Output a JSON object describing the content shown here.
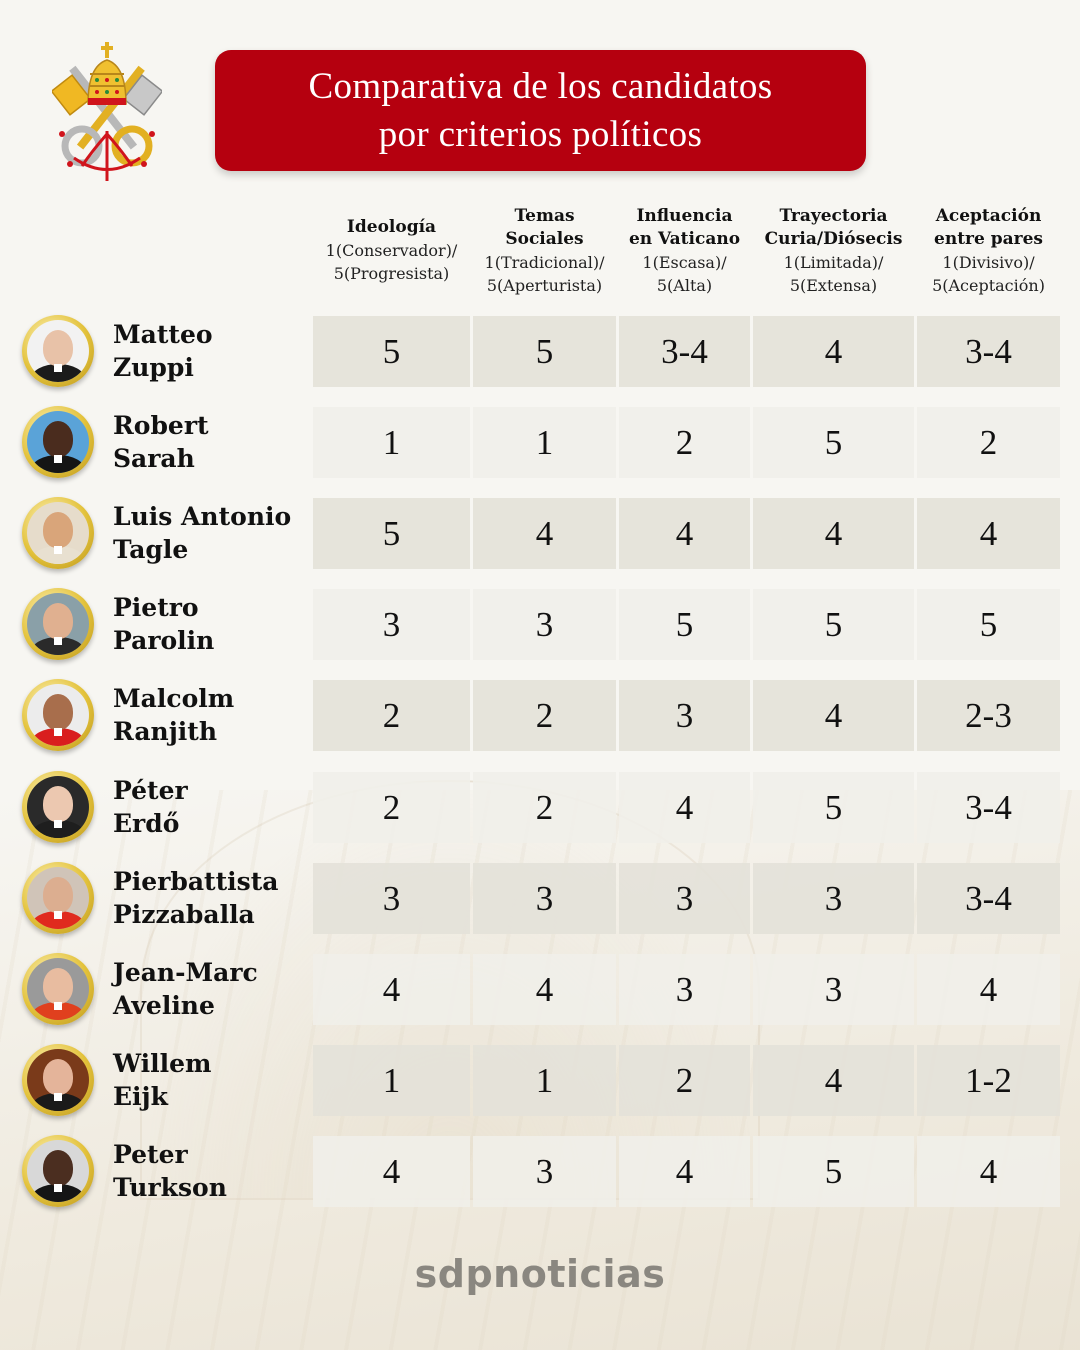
{
  "header": {
    "title_line1": "Comparativa de los candidatos",
    "title_line2": "por criterios políticos",
    "brand_color": "#b5000f"
  },
  "columns": [
    {
      "name_line1": "Ideología",
      "name_line2": "",
      "scale_line1": "1(Conservador)/",
      "scale_line2": "5(Progresista)"
    },
    {
      "name_line1": "Temas",
      "name_line2": "Sociales",
      "scale_line1": "1(Tradicional)/",
      "scale_line2": "5(Aperturista)"
    },
    {
      "name_line1": "Influencia",
      "name_line2": "en Vaticano",
      "scale_line1": "1(Escasa)/",
      "scale_line2": "5(Alta)"
    },
    {
      "name_line1": "Trayectoria",
      "name_line2": "Curia/Diósecis",
      "scale_line1": "1(Limitada)/",
      "scale_line2": "5(Extensa)"
    },
    {
      "name_line1": "Aceptación",
      "name_line2": "entre pares",
      "scale_line1": "1(Divisivo)/",
      "scale_line2": "5(Aceptación)"
    }
  ],
  "candidates": [
    {
      "first": "Matteo",
      "last": "Zuppi",
      "values": [
        "5",
        "5",
        "3-4",
        "4",
        "3-4"
      ],
      "skin": "#e8c2a8",
      "robe": "#1b1b1b",
      "bg": "#f2f2f2"
    },
    {
      "first": "Robert",
      "last": "Sarah",
      "values": [
        "1",
        "1",
        "2",
        "5",
        "2"
      ],
      "skin": "#4a2c1e",
      "robe": "#151515",
      "bg": "#5aa3d8"
    },
    {
      "first": "Luis Antonio",
      "last": "Tagle",
      "values": [
        "5",
        "4",
        "4",
        "4",
        "4"
      ],
      "skin": "#d9a57a",
      "robe": "#e8e0d0",
      "bg": "#e6dccb"
    },
    {
      "first": "Pietro",
      "last": "Parolin",
      "values": [
        "3",
        "3",
        "5",
        "5",
        "5"
      ],
      "skin": "#e0b090",
      "robe": "#2a2a2a",
      "bg": "#8aa0a8"
    },
    {
      "first": "Malcolm",
      "last": "Ranjith",
      "values": [
        "2",
        "2",
        "3",
        "4",
        "2-3"
      ],
      "skin": "#a86e4c",
      "robe": "#d91e1e",
      "bg": "#ececec"
    },
    {
      "first": "Péter",
      "last": "Erdő",
      "values": [
        "2",
        "2",
        "4",
        "5",
        "3-4"
      ],
      "skin": "#ecc8b0",
      "robe": "#1e1e1e",
      "bg": "#2a2a2a"
    },
    {
      "first": "Pierbattista",
      "last": "Pizzaballa",
      "values": [
        "3",
        "3",
        "3",
        "3",
        "3-4"
      ],
      "skin": "#dcae90",
      "robe": "#e02a1e",
      "bg": "#d0c4b8"
    },
    {
      "first": "Jean-Marc",
      "last": "Aveline",
      "values": [
        "4",
        "4",
        "3",
        "3",
        "4"
      ],
      "skin": "#e8bca0",
      "robe": "#e0401e",
      "bg": "#9a9a9a"
    },
    {
      "first": "Willem",
      "last": "Eijk",
      "values": [
        "1",
        "1",
        "2",
        "4",
        "1-2"
      ],
      "skin": "#e4b49a",
      "robe": "#1a1a1a",
      "bg": "#7a3a1a"
    },
    {
      "first": "Peter",
      "last": "Turkson",
      "values": [
        "4",
        "3",
        "4",
        "5",
        "4"
      ],
      "skin": "#4b2e20",
      "robe": "#151515",
      "bg": "#d8d8d8"
    }
  ],
  "footer": {
    "brand": "sdpnoticias"
  },
  "icons": {
    "crest": "papal-crest-icon"
  }
}
